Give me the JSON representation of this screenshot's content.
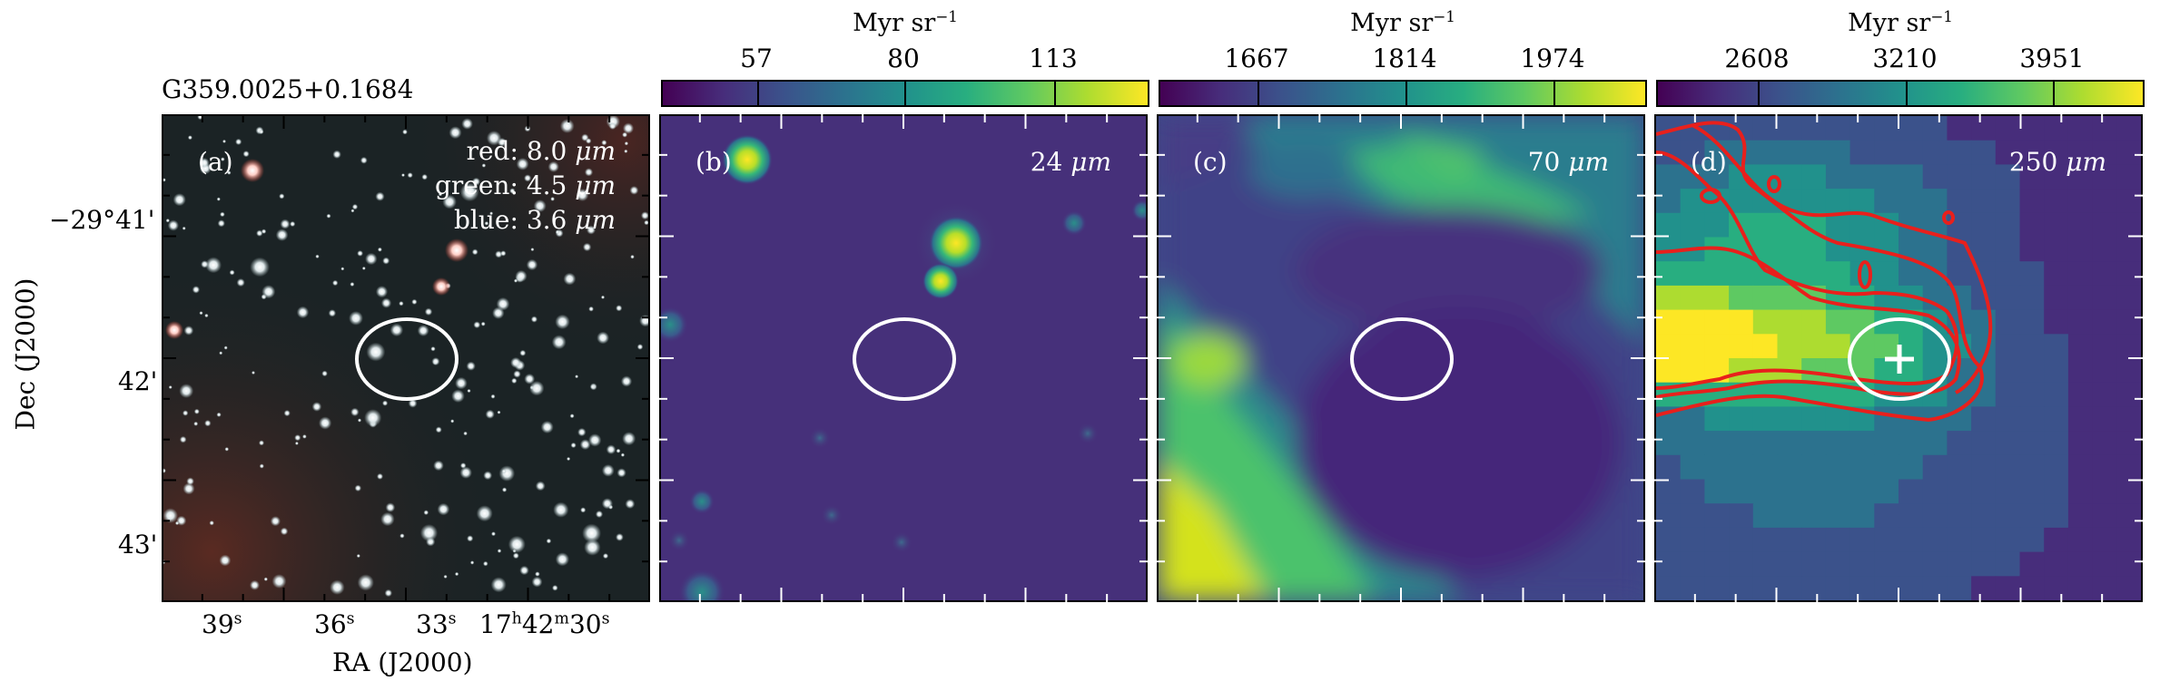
{
  "source_name": "G359.0025+0.1684",
  "axes": {
    "xlabel": "RA (J2000)",
    "ylabel": "Dec (J2000)",
    "dec_ticks": [
      "−29°41'",
      "42'",
      "43'"
    ],
    "ra_ticks": [
      {
        "value": "39",
        "unit": "s"
      },
      {
        "value": "36",
        "unit": "s"
      },
      {
        "value": "33",
        "unit": "s"
      },
      {
        "value": "17",
        "unit": "h",
        "value2": "42",
        "unit2": "m",
        "value3": "30",
        "unit3": "s"
      }
    ]
  },
  "colorbar_unit": {
    "base": "Myr sr",
    "exp": "−1"
  },
  "panels": [
    {
      "tag": "(a)",
      "legend": [
        {
          "color": "red",
          "wavelength": "8.0"
        },
        {
          "color": "green",
          "wavelength": "4.5"
        },
        {
          "color": "blue",
          "wavelength": "3.6"
        }
      ],
      "unit": "μm"
    },
    {
      "tag": "(b)",
      "label_value": "24",
      "unit": "μm",
      "colorbar_ticks": [
        "57",
        "80",
        "113"
      ]
    },
    {
      "tag": "(c)",
      "label_value": "70",
      "unit": "μm",
      "colorbar_ticks": [
        "1667",
        "1814",
        "1974"
      ]
    },
    {
      "tag": "(d)",
      "label_value": "250",
      "unit": "μm",
      "colorbar_ticks": [
        "2608",
        "3210",
        "3951"
      ]
    }
  ],
  "colors": {
    "viridis_low": "#440154",
    "viridis_mid": "#21918c",
    "viridis_high": "#fde725",
    "contour": "#e8201c",
    "marker": "#ffffff"
  }
}
